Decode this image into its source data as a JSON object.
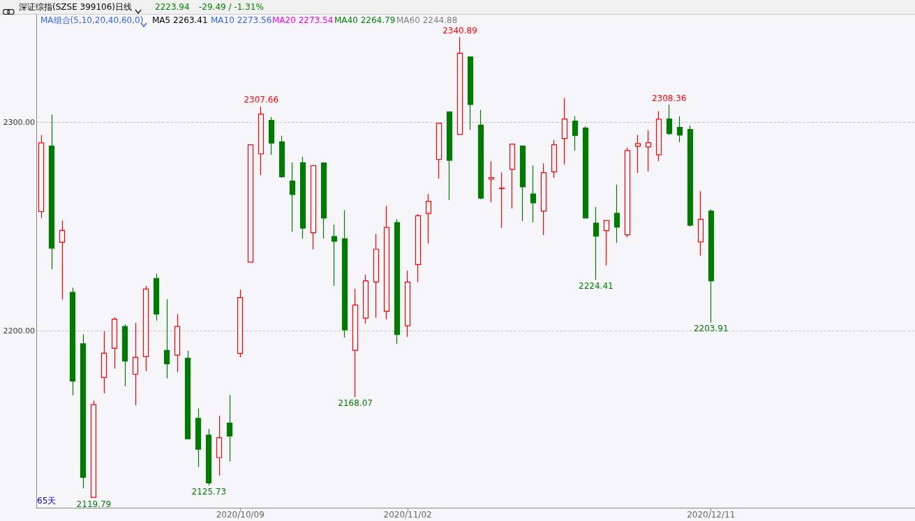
{
  "chart_data": {
    "type": "candlestick",
    "title": "深证综指(SZSE 399106)",
    "categories": [
      null,
      null,
      null,
      null,
      null,
      null,
      null,
      null,
      null,
      null,
      null,
      null,
      null,
      null,
      null,
      null,
      null,
      null,
      null,
      "2020/10/09",
      null,
      null,
      null,
      null,
      null,
      null,
      null,
      null,
      null,
      null,
      null,
      null,
      null,
      null,
      null,
      "2020/11/02",
      null,
      null,
      null,
      null,
      null,
      null,
      null,
      null,
      null,
      null,
      null,
      null,
      null,
      null,
      null,
      null,
      null,
      null,
      null,
      null,
      null,
      null,
      null,
      null,
      null,
      null,
      null,
      null,
      "2020/12/11"
    ],
    "ohlc": [
      [
        2257.1,
        2293.9,
        2254.1,
        2290.1
      ],
      [
        2288.6,
        2303.7,
        2229.4,
        2239.6
      ],
      [
        2242.4,
        2252.8,
        2214.9,
        2248.1
      ],
      [
        2218.4,
        2220.6,
        2169.0,
        2175.8
      ],
      [
        2193.7,
        2198.2,
        2124.3,
        2129.6
      ],
      [
        2120.0,
        2166.5,
        2119.79,
        2164.5
      ],
      [
        2177.5,
        2199.7,
        2169.9,
        2189.2
      ],
      [
        2191.5,
        2206.4,
        2181.7,
        2205.5
      ],
      [
        2202.0,
        2203.0,
        2173.3,
        2185.4
      ],
      [
        2179.1,
        2203.7,
        2164.2,
        2187.2
      ],
      [
        2187.5,
        2221.5,
        2180.6,
        2220.0
      ],
      [
        2225.0,
        2227.4,
        2204.8,
        2208.0
      ],
      [
        2190.5,
        2215.1,
        2177.1,
        2184.1
      ],
      [
        2188.3,
        2207.9,
        2180.0,
        2202.0
      ],
      [
        2186.8,
        2190.3,
        2147.8,
        2148.1
      ],
      [
        2157.9,
        2162.7,
        2134.6,
        2143.1
      ],
      [
        2149.9,
        2152.8,
        2125.73,
        2126.9
      ],
      [
        2139.1,
        2159.2,
        2130.4,
        2148.6
      ],
      [
        2155.6,
        2169.1,
        2137.2,
        2149.4
      ],
      [
        2189.1,
        2219.7,
        2187.2,
        2215.9
      ],
      [
        2232.9,
        2289.2,
        2232.9,
        2289.2
      ],
      [
        2284.8,
        2307.66,
        2274.7,
        2303.9
      ],
      [
        2300.9,
        2302.5,
        2284.4,
        2290.0
      ],
      [
        2290.6,
        2293.5,
        2273.3,
        2273.9
      ],
      [
        2271.8,
        2280.8,
        2247.5,
        2265.3
      ],
      [
        2280.6,
        2283.5,
        2244.2,
        2249.2
      ],
      [
        2247.0,
        2279.6,
        2239.0,
        2279.2
      ],
      [
        2280.5,
        2280.5,
        2244.2,
        2254.0
      ],
      [
        2245.2,
        2250.8,
        2221.5,
        2242.9
      ],
      [
        2244.1,
        2257.8,
        2196.7,
        2200.4
      ],
      [
        2190.5,
        2220.1,
        2168.07,
        2212.3
      ],
      [
        2206.0,
        2226.8,
        2203.4,
        2223.9
      ],
      [
        2223.3,
        2246.5,
        2206.1,
        2239.1
      ],
      [
        2209.3,
        2259.9,
        2205.5,
        2249.5
      ],
      [
        2251.9,
        2253.5,
        2193.7,
        2198.1
      ],
      [
        2202.3,
        2228.8,
        2197.0,
        2223.3
      ],
      [
        2231.7,
        2255.9,
        2223.3,
        2255.1
      ],
      [
        2256.2,
        2265.6,
        2241.9,
        2262.1
      ],
      [
        2282.2,
        2299.8,
        2273.0,
        2299.6
      ],
      [
        2305.0,
        2305.0,
        2262.7,
        2281.7
      ],
      [
        2294.2,
        2340.89,
        2294.2,
        2333.1
      ],
      [
        2331.4,
        2331.4,
        2296.4,
        2308.5
      ],
      [
        2298.7,
        2306.0,
        2263.0,
        2263.6
      ],
      [
        2272.8,
        2281.3,
        2261.6,
        2273.5
      ],
      [
        2268.2,
        2275.9,
        2249.3,
        2268.4
      ],
      [
        2277.5,
        2289.5,
        2258.6,
        2289.5
      ],
      [
        2288.6,
        2288.6,
        2252.6,
        2269.0
      ],
      [
        2265.6,
        2279.3,
        2252.0,
        2261.3
      ],
      [
        2257.4,
        2280.3,
        2245.9,
        2275.8
      ],
      [
        2276.2,
        2291.6,
        2273.3,
        2289.2
      ],
      [
        2292.2,
        2311.7,
        2279.7,
        2301.6
      ],
      [
        2300.6,
        2303.0,
        2286.4,
        2293.7
      ],
      [
        2297.2,
        2298.1,
        2254.0,
        2254.0
      ],
      [
        2251.6,
        2259.4,
        2224.41,
        2245.3
      ],
      [
        2248.0,
        2252.9,
        2231.2,
        2252.9
      ],
      [
        2256.3,
        2270.1,
        2242.1,
        2249.7
      ],
      [
        2246.0,
        2287.8,
        2244.8,
        2286.4
      ],
      [
        2288.5,
        2293.9,
        2275.7,
        2289.8
      ],
      [
        2288.2,
        2296.2,
        2276.4,
        2290.2
      ],
      [
        2284.4,
        2305.3,
        2281.4,
        2301.5
      ],
      [
        2301.6,
        2308.36,
        2293.9,
        2294.5
      ],
      [
        2297.6,
        2302.9,
        2290.4,
        2293.9
      ],
      [
        2296.6,
        2298.5,
        2249.9,
        2250.6
      ],
      [
        2242.6,
        2266.9,
        2236.0,
        2253.43
      ],
      [
        2257.4,
        2258.3,
        2203.91,
        2223.94
      ]
    ],
    "ylim": [
      2115,
      2352
    ],
    "yticks": [
      {
        "value": 2200,
        "label": "2200.00"
      },
      {
        "value": 2300,
        "label": "2300.00"
      }
    ],
    "grid": "y",
    "annotations": [
      "日线",
      "2223.94",
      "-29.49 / -1.31%",
      "MA组合(5,10,20,40,60,0)",
      "MA5 2263.41",
      "MA10 2273.56",
      "MA20 2273.54",
      "MA40 2264.79",
      "MA60 2244.88",
      "65天",
      {
        "text": "2340.89",
        "y": 2340.89
      },
      {
        "text": "2307.66",
        "y": 2307.66
      },
      {
        "text": "2308.36",
        "y": 2308.36
      },
      {
        "text": "2119.79",
        "y": 2119.79
      },
      {
        "text": "2125.73",
        "y": 2125.73
      },
      {
        "text": "2168.07",
        "y": 2168.07
      },
      {
        "text": "2224.41",
        "y": 2224.41
      },
      {
        "text": "2203.91",
        "y": 2203.91
      }
    ]
  }
}
